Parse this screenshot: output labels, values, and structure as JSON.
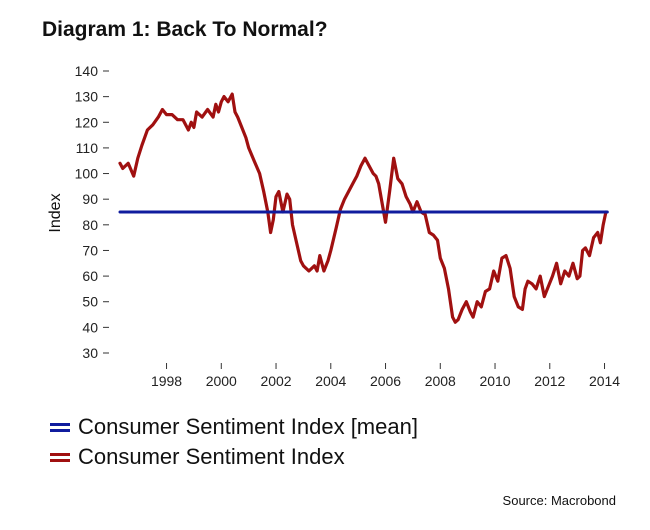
{
  "chart_data": {
    "type": "line",
    "title": "Diagram 1: Back To Normal?",
    "xlabel": "",
    "ylabel": "Index",
    "xlim": [
      1996.3,
      2014.2
    ],
    "ylim": [
      30,
      140
    ],
    "yticks": [
      30,
      40,
      50,
      60,
      70,
      80,
      90,
      100,
      110,
      120,
      130,
      140
    ],
    "xticks": [
      1998,
      2000,
      2002,
      2004,
      2006,
      2008,
      2010,
      2012,
      2014
    ],
    "grid": false,
    "legend_position": "bottom-left",
    "series": [
      {
        "name": "Consumer Sentiment Index [mean]",
        "color": "#101c9e",
        "x": [
          1996.3,
          2014.1
        ],
        "y": [
          85,
          85
        ]
      },
      {
        "name": "Consumer Sentiment Index",
        "color": "#a01010",
        "x": [
          1996.3,
          1996.4,
          1996.6,
          1996.8,
          1996.95,
          1997.1,
          1997.3,
          1997.5,
          1997.7,
          1997.85,
          1998.0,
          1998.2,
          1998.4,
          1998.6,
          1998.8,
          1998.9,
          1999.0,
          1999.1,
          1999.3,
          1999.5,
          1999.7,
          1999.8,
          1999.9,
          2000.0,
          2000.1,
          2000.25,
          2000.4,
          2000.5,
          2000.6,
          2000.75,
          2000.9,
          2001.0,
          2001.2,
          2001.4,
          2001.55,
          2001.7,
          2001.8,
          2001.9,
          2002.0,
          2002.1,
          2002.25,
          2002.4,
          2002.5,
          2002.6,
          2002.75,
          2002.9,
          2003.0,
          2003.2,
          2003.4,
          2003.5,
          2003.6,
          2003.75,
          2003.9,
          2004.0,
          2004.2,
          2004.35,
          2004.5,
          2004.65,
          2004.8,
          2004.95,
          2005.1,
          2005.25,
          2005.4,
          2005.55,
          2005.65,
          2005.75,
          2005.85,
          2006.0,
          2006.15,
          2006.3,
          2006.45,
          2006.6,
          2006.75,
          2006.9,
          2007.0,
          2007.15,
          2007.3,
          2007.45,
          2007.6,
          2007.75,
          2007.9,
          2008.0,
          2008.15,
          2008.3,
          2008.45,
          2008.55,
          2008.65,
          2008.8,
          2008.95,
          2009.1,
          2009.2,
          2009.35,
          2009.5,
          2009.65,
          2009.8,
          2009.95,
          2010.1,
          2010.25,
          2010.4,
          2010.55,
          2010.7,
          2010.85,
          2011.0,
          2011.1,
          2011.2,
          2011.35,
          2011.5,
          2011.65,
          2011.8,
          2011.95,
          2012.1,
          2012.25,
          2012.4,
          2012.55,
          2012.7,
          2012.85,
          2013.0,
          2013.1,
          2013.2,
          2013.3,
          2013.45,
          2013.6,
          2013.75,
          2013.85,
          2013.95,
          2014.05
        ],
        "y": [
          104,
          102,
          104,
          99,
          106,
          111,
          117,
          119,
          122,
          125,
          123,
          123,
          121,
          121,
          117,
          120,
          118,
          124,
          122,
          125,
          122,
          127,
          124,
          128,
          130,
          128,
          131,
          124,
          122,
          118,
          114,
          110,
          105,
          100,
          93,
          85,
          77,
          82,
          91,
          93,
          85,
          92,
          90,
          80,
          73,
          66,
          64,
          62,
          64,
          62,
          68,
          62,
          66,
          70,
          79,
          86,
          90,
          93,
          96,
          99,
          103,
          106,
          103,
          100,
          99,
          96,
          90,
          81,
          93,
          106,
          98,
          96,
          91,
          88,
          85,
          89,
          85,
          84,
          77,
          76,
          74,
          67,
          63,
          55,
          44,
          42,
          43,
          47,
          50,
          46,
          44,
          50,
          48,
          54,
          55,
          62,
          58,
          67,
          68,
          63,
          52,
          48,
          47,
          55,
          58,
          57,
          55,
          60,
          52,
          56,
          60,
          65,
          57,
          62,
          60,
          65,
          59,
          60,
          70,
          71,
          68,
          75,
          77,
          73,
          80,
          85
        ]
      }
    ]
  },
  "legend": {
    "items": [
      {
        "label": "Consumer Sentiment Index [mean]",
        "color": "#101c9e"
      },
      {
        "label": "Consumer Sentiment Index",
        "color": "#a01010"
      }
    ]
  },
  "source": "Source: Macrobond"
}
